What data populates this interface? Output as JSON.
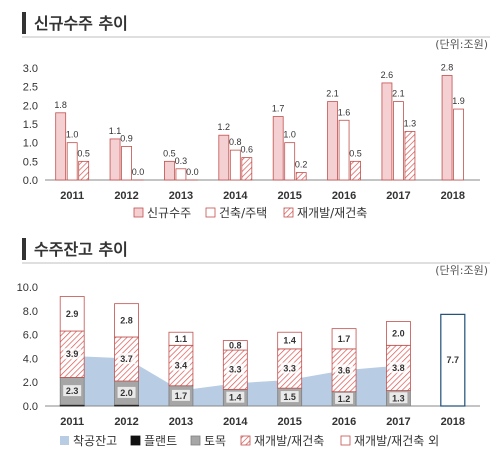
{
  "chart_data": [
    {
      "type": "bar",
      "title": "신규수주 추이",
      "unit": "(단위:조원)",
      "categories": [
        "2011",
        "2012",
        "2013",
        "2014",
        "2015",
        "2016",
        "2017",
        "2018"
      ],
      "ylim": [
        0,
        3.0
      ],
      "yticks": [
        "0.0",
        "0.5",
        "1.0",
        "1.5",
        "2.0",
        "2.5",
        "3.0"
      ],
      "legend_position": "bottom",
      "series": [
        {
          "name": "신규수주",
          "values": [
            1.8,
            1.1,
            0.5,
            1.2,
            1.7,
            2.1,
            2.6,
            2.8
          ],
          "labels": [
            "1.8",
            "1.1",
            "0.5",
            "1.2",
            "1.7",
            "2.1",
            "2.6",
            "2.8"
          ],
          "color": "#f5d0d3",
          "stroke": "#c0504d"
        },
        {
          "name": "건축/주택",
          "values": [
            1.0,
            0.9,
            0.3,
            0.8,
            1.0,
            1.6,
            2.1,
            1.9
          ],
          "labels": [
            "1.0",
            "0.9",
            "0.3",
            "0.8",
            "1.0",
            "1.6",
            "2.1",
            "1.9"
          ],
          "color": "#ffffff",
          "stroke": "#c0504d"
        },
        {
          "name": "재개발/재건축",
          "values": [
            0.5,
            0.0,
            0.0,
            0.6,
            0.2,
            0.5,
            1.3,
            null
          ],
          "labels": [
            "0.5",
            "0.0",
            "0.0",
            "0.6",
            "0.2",
            "0.5",
            "1.3",
            ""
          ],
          "color": "hatch",
          "stroke": "#c0504d"
        }
      ]
    },
    {
      "type": "bar",
      "stacked": true,
      "title": "수주잔고 추이",
      "unit": "(단위:조원)",
      "categories": [
        "2011",
        "2012",
        "2013",
        "2014",
        "2015",
        "2016",
        "2017",
        "2018"
      ],
      "ylim": [
        0,
        10.0
      ],
      "yticks": [
        "0.0",
        "2.0",
        "4.0",
        "6.0",
        "8.0",
        "10.0"
      ],
      "legend_position": "bottom",
      "area": {
        "name": "착공잔고",
        "values": [
          4.2,
          4.0,
          1.3,
          1.9,
          2.2,
          3.0,
          3.4,
          null
        ],
        "color": "#b8cce4"
      },
      "series": [
        {
          "name": "플랜트",
          "values": [
            0.1,
            0.1,
            0,
            0,
            0,
            0,
            0,
            null
          ],
          "labels": [
            "",
            "",
            "",
            "",
            "",
            "",
            "",
            ""
          ],
          "color": "#111111"
        },
        {
          "name": "토목",
          "values": [
            2.3,
            2.0,
            1.7,
            1.4,
            1.5,
            1.2,
            1.3,
            null
          ],
          "labels": [
            "2.3",
            "2.0",
            "1.7",
            "1.4",
            "1.5",
            "1.2",
            "1.3",
            ""
          ],
          "color": "#a6a6a6"
        },
        {
          "name": "재개발/재건축",
          "values": [
            3.9,
            3.7,
            3.4,
            3.3,
            3.3,
            3.6,
            3.8,
            null
          ],
          "labels": [
            "3.9",
            "3.7",
            "3.4",
            "3.3",
            "3.3",
            "3.6",
            "3.8",
            ""
          ],
          "color": "hatch"
        },
        {
          "name": "재개발/재건축 외",
          "values": [
            2.9,
            2.8,
            1.1,
            0.8,
            1.4,
            1.7,
            2.0,
            null
          ],
          "labels": [
            "2.9",
            "2.8",
            "1.1",
            "0.8",
            "1.4",
            "1.7",
            "2.0",
            ""
          ],
          "color": "#ffffff"
        }
      ],
      "total_2018": {
        "value": 7.7,
        "label": "7.7",
        "stroke": "#1f4e79"
      }
    }
  ]
}
